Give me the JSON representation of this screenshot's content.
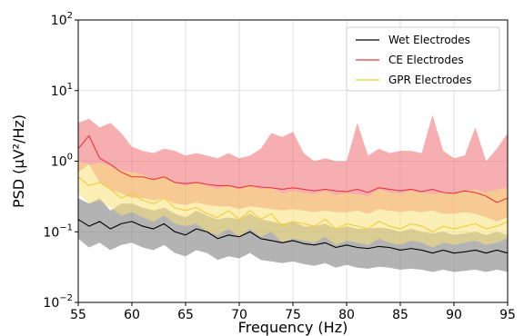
{
  "chart_data": {
    "type": "line",
    "title": "",
    "xlabel": "Frequency (Hz)",
    "ylabel": "PSD (µV²/Hz)",
    "xlim": [
      55,
      95
    ],
    "ylim": [
      0.01,
      100
    ],
    "yscale": "log",
    "grid": true,
    "legend_position": "top-right",
    "x_ticks": [
      55,
      60,
      65,
      70,
      75,
      80,
      85,
      90,
      95
    ],
    "y_ticks": [
      {
        "value": 0.01,
        "base": "10",
        "exp": "−2"
      },
      {
        "value": 0.1,
        "base": "10",
        "exp": "−1"
      },
      {
        "value": 1,
        "base": "10",
        "exp": "0"
      },
      {
        "value": 10,
        "base": "10",
        "exp": "1"
      },
      {
        "value": 100,
        "base": "10",
        "exp": "2"
      }
    ],
    "series": [
      {
        "name": "Wet Electrodes",
        "color": "#000000",
        "band_color": "#808080",
        "band_opacity": 0.6,
        "x": [
          55,
          56,
          57,
          58,
          59,
          60,
          61,
          62,
          63,
          64,
          65,
          66,
          67,
          68,
          69,
          70,
          71,
          72,
          73,
          74,
          75,
          76,
          77,
          78,
          79,
          80,
          81,
          82,
          83,
          84,
          85,
          86,
          87,
          88,
          89,
          90,
          91,
          92,
          93,
          94,
          95
        ],
        "mean": [
          0.15,
          0.12,
          0.14,
          0.11,
          0.13,
          0.14,
          0.12,
          0.11,
          0.13,
          0.1,
          0.09,
          0.11,
          0.1,
          0.08,
          0.09,
          0.085,
          0.1,
          0.08,
          0.075,
          0.07,
          0.075,
          0.068,
          0.065,
          0.07,
          0.06,
          0.065,
          0.06,
          0.058,
          0.062,
          0.06,
          0.055,
          0.058,
          0.055,
          0.05,
          0.055,
          0.05,
          0.052,
          0.055,
          0.05,
          0.055,
          0.05
        ],
        "upper": [
          0.3,
          0.25,
          0.3,
          0.2,
          0.25,
          0.25,
          0.22,
          0.2,
          0.22,
          0.18,
          0.16,
          0.2,
          0.17,
          0.15,
          0.16,
          0.15,
          0.18,
          0.15,
          0.14,
          0.13,
          0.14,
          0.12,
          0.12,
          0.13,
          0.11,
          0.12,
          0.11,
          0.11,
          0.115,
          0.11,
          0.1,
          0.11,
          0.1,
          0.095,
          0.1,
          0.09,
          0.095,
          0.1,
          0.09,
          0.1,
          0.09
        ],
        "lower": [
          0.08,
          0.06,
          0.07,
          0.055,
          0.065,
          0.07,
          0.06,
          0.055,
          0.065,
          0.05,
          0.045,
          0.055,
          0.05,
          0.04,
          0.045,
          0.042,
          0.05,
          0.04,
          0.038,
          0.036,
          0.038,
          0.035,
          0.033,
          0.036,
          0.031,
          0.034,
          0.031,
          0.03,
          0.032,
          0.031,
          0.029,
          0.03,
          0.029,
          0.027,
          0.029,
          0.027,
          0.028,
          0.029,
          0.027,
          0.029,
          0.027
        ]
      },
      {
        "name": "CE Electrodes",
        "color": "#e8383d",
        "band_color": "#f05d64",
        "band_opacity": 0.5,
        "x": [
          55,
          56,
          57,
          58,
          59,
          60,
          61,
          62,
          63,
          64,
          65,
          66,
          67,
          68,
          69,
          70,
          71,
          72,
          73,
          74,
          75,
          76,
          77,
          78,
          79,
          80,
          81,
          82,
          83,
          84,
          85,
          86,
          87,
          88,
          89,
          90,
          91,
          92,
          93,
          94,
          95
        ],
        "mean": [
          1.5,
          2.3,
          1.1,
          0.9,
          0.7,
          0.6,
          0.6,
          0.55,
          0.6,
          0.5,
          0.48,
          0.5,
          0.47,
          0.45,
          0.45,
          0.42,
          0.45,
          0.43,
          0.42,
          0.4,
          0.42,
          0.4,
          0.38,
          0.4,
          0.38,
          0.37,
          0.4,
          0.36,
          0.42,
          0.4,
          0.38,
          0.4,
          0.37,
          0.4,
          0.36,
          0.35,
          0.38,
          0.36,
          0.32,
          0.26,
          0.3
        ],
        "upper": [
          3.5,
          4.0,
          3.0,
          3.5,
          2.5,
          1.6,
          1.4,
          1.3,
          1.5,
          1.4,
          1.2,
          1.3,
          1.2,
          1.1,
          1.3,
          1.1,
          1.2,
          1.5,
          2.5,
          2.2,
          2.6,
          1.3,
          1.0,
          1.1,
          1.0,
          1.0,
          3.5,
          1.2,
          1.5,
          1.3,
          1.4,
          1.4,
          1.3,
          4.5,
          1.4,
          1.1,
          1.2,
          3.0,
          1.0,
          1.5,
          2.5
        ],
        "lower": [
          0.7,
          0.9,
          0.5,
          0.4,
          0.35,
          0.3,
          0.3,
          0.28,
          0.3,
          0.25,
          0.24,
          0.26,
          0.24,
          0.23,
          0.23,
          0.21,
          0.23,
          0.22,
          0.21,
          0.2,
          0.21,
          0.2,
          0.19,
          0.2,
          0.19,
          0.19,
          0.2,
          0.18,
          0.21,
          0.2,
          0.19,
          0.2,
          0.19,
          0.2,
          0.18,
          0.18,
          0.19,
          0.18,
          0.16,
          0.14,
          0.16
        ]
      },
      {
        "name": "GPR Electrodes",
        "color": "#f2cc3a",
        "band_color": "#f7e27a",
        "band_opacity": 0.55,
        "x": [
          55,
          56,
          57,
          58,
          59,
          60,
          61,
          62,
          63,
          64,
          65,
          66,
          67,
          68,
          69,
          70,
          71,
          72,
          73,
          74,
          75,
          76,
          77,
          78,
          79,
          80,
          81,
          82,
          83,
          84,
          85,
          86,
          87,
          88,
          89,
          90,
          91,
          92,
          93,
          94,
          95
        ],
        "mean": [
          0.6,
          0.45,
          0.5,
          0.4,
          0.3,
          0.35,
          0.28,
          0.25,
          0.3,
          0.22,
          0.2,
          0.22,
          0.18,
          0.16,
          0.2,
          0.15,
          0.2,
          0.15,
          0.18,
          0.12,
          0.14,
          0.13,
          0.12,
          0.15,
          0.11,
          0.13,
          0.12,
          0.11,
          0.14,
          0.12,
          0.11,
          0.13,
          0.12,
          0.1,
          0.12,
          0.11,
          0.12,
          0.13,
          0.11,
          0.12,
          0.14
        ],
        "upper": [
          1.0,
          0.9,
          0.95,
          0.85,
          0.75,
          0.7,
          0.65,
          0.55,
          0.6,
          0.5,
          0.45,
          0.5,
          0.45,
          0.4,
          0.45,
          0.4,
          0.45,
          0.4,
          0.42,
          0.35,
          0.38,
          0.36,
          0.34,
          0.38,
          0.33,
          0.35,
          0.34,
          0.32,
          0.4,
          0.36,
          0.35,
          0.38,
          0.36,
          0.34,
          0.36,
          0.35,
          0.38,
          0.4,
          0.36,
          0.4,
          0.42
        ],
        "lower": [
          0.35,
          0.25,
          0.28,
          0.22,
          0.17,
          0.19,
          0.16,
          0.14,
          0.17,
          0.13,
          0.12,
          0.13,
          0.1,
          0.09,
          0.11,
          0.085,
          0.11,
          0.085,
          0.1,
          0.07,
          0.08,
          0.075,
          0.07,
          0.085,
          0.065,
          0.075,
          0.07,
          0.065,
          0.08,
          0.07,
          0.065,
          0.075,
          0.07,
          0.06,
          0.07,
          0.065,
          0.07,
          0.075,
          0.065,
          0.07,
          0.08
        ]
      }
    ]
  }
}
